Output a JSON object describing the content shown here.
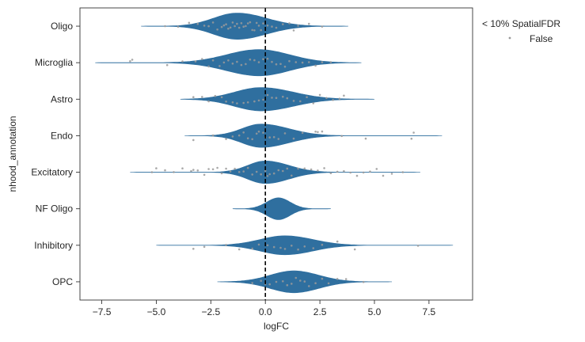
{
  "chart_data": {
    "type": "violin",
    "title": "",
    "xlabel": "logFC",
    "ylabel": "nhood_annotation",
    "xlim": [
      -8.5,
      9.5
    ],
    "xticks": [
      -7.5,
      -5.0,
      -2.5,
      0.0,
      2.5,
      5.0,
      7.5
    ],
    "xtick_labels": [
      "−7.5",
      "−5.0",
      "−2.5",
      "0.0",
      "2.5",
      "5.0",
      "7.5"
    ],
    "reference_line_x": 0,
    "grid": false,
    "violin_color": "#2f6f9f",
    "point_color": "#9a9a9a",
    "legend": {
      "placement": "outside-top-right",
      "title": "< 10% SpatialFDR",
      "entries": [
        {
          "label": "False",
          "color": "#9a9a9a"
        }
      ]
    },
    "categories": [
      "Oligo",
      "Microglia",
      "Astro",
      "Endo",
      "Excitatory",
      "NF Oligo",
      "Inhibitory",
      "OPC"
    ],
    "violins": [
      {
        "category": "Oligo",
        "range": [
          -5.7,
          3.8
        ],
        "mode": -1.3,
        "width": 0.72,
        "spread_left": 1.6,
        "spread_right": 2.0
      },
      {
        "category": "Microglia",
        "range": [
          -7.8,
          4.4
        ],
        "mode": -0.3,
        "width": 0.72,
        "spread_left": 2.2,
        "spread_right": 2.1
      },
      {
        "category": "Astro",
        "range": [
          -3.9,
          5.0
        ],
        "mode": -0.2,
        "width": 0.64,
        "spread_left": 1.8,
        "spread_right": 2.2
      },
      {
        "category": "Endo",
        "range": [
          -3.7,
          8.1
        ],
        "mode": -0.2,
        "width": 0.64,
        "spread_left": 1.3,
        "spread_right": 1.9
      },
      {
        "category": "Excitatory",
        "range": [
          -6.2,
          7.1
        ],
        "mode": 0.0,
        "width": 0.62,
        "spread_left": 1.2,
        "spread_right": 1.6
      },
      {
        "category": "NF Oligo",
        "range": [
          -1.5,
          3.0
        ],
        "mode": 0.6,
        "width": 0.6,
        "spread_left": 0.8,
        "spread_right": 0.8
      },
      {
        "category": "Inhibitory",
        "range": [
          -5.0,
          8.6
        ],
        "mode": 0.9,
        "width": 0.52,
        "spread_left": 1.7,
        "spread_right": 1.9
      },
      {
        "category": "OPC",
        "range": [
          -2.2,
          5.8
        ],
        "mode": 1.3,
        "width": 0.6,
        "spread_left": 1.6,
        "spread_right": 1.7
      }
    ],
    "points": [
      {
        "category": "Oligo",
        "x": [
          -4.6,
          -4.0,
          -3.5,
          -3.1,
          -2.8,
          -2.6,
          -2.4,
          -2.2,
          -2.0,
          -1.9,
          -1.8,
          -1.7,
          -1.6,
          -1.5,
          -1.4,
          -1.3,
          -1.2,
          -1.1,
          -1.0,
          -0.9,
          -0.8,
          -0.7,
          -0.6,
          -0.5,
          -0.4,
          -0.3,
          -0.2,
          -0.1,
          0.1,
          0.3,
          0.5,
          0.8,
          1.1,
          1.3,
          1.5,
          2.0,
          2.6
        ]
      },
      {
        "category": "Microglia",
        "x": [
          -6.2,
          -6.1,
          -4.5,
          -3.8,
          -3.2,
          -2.9,
          -2.6,
          -2.4,
          -2.1,
          -1.9,
          -1.7,
          -1.5,
          -1.3,
          -1.1,
          -0.9,
          -0.7,
          -0.5,
          -0.3,
          -0.1,
          0.1,
          0.3,
          0.5,
          0.7,
          0.9,
          1.1,
          1.4,
          1.7,
          2.0,
          2.3,
          2.6,
          3.0
        ]
      },
      {
        "category": "Astro",
        "x": [
          -3.3,
          -2.9,
          -2.6,
          -2.3,
          -2.0,
          -1.8,
          -1.5,
          -1.3,
          -1.0,
          -0.8,
          -0.5,
          -0.3,
          -0.1,
          0.1,
          0.3,
          0.5,
          0.8,
          1.0,
          1.3,
          1.6,
          1.9,
          2.2,
          2.5,
          2.8,
          3.1,
          3.4,
          3.6
        ]
      },
      {
        "category": "Endo",
        "x": [
          -3.3,
          -2.4,
          -1.8,
          -1.5,
          -1.2,
          -1.0,
          -0.8,
          -0.6,
          -0.4,
          -0.3,
          -0.1,
          0.0,
          0.2,
          0.4,
          0.6,
          0.9,
          1.3,
          1.7,
          2.3,
          2.4,
          2.6,
          3.5,
          4.6,
          6.7,
          6.8
        ]
      },
      {
        "category": "Excitatory",
        "x": [
          -5.2,
          -5.0,
          -4.6,
          -4.2,
          -3.8,
          -3.4,
          -3.3,
          -3.1,
          -2.8,
          -2.6,
          -2.4,
          -2.2,
          -2.0,
          -1.8,
          -1.6,
          -1.4,
          -1.2,
          -1.0,
          -0.8,
          -0.6,
          -0.4,
          -0.2,
          0.0,
          0.1,
          0.2,
          0.4,
          0.6,
          0.8,
          1.0,
          1.2,
          1.5,
          1.8,
          2.1,
          2.4,
          2.7,
          3.0,
          3.3,
          3.6,
          3.9,
          4.2,
          4.5,
          4.8,
          5.1,
          5.4,
          5.8,
          6.3
        ]
      },
      {
        "category": "Inhibitory",
        "x": [
          -3.3,
          -2.8,
          -1.8,
          -1.2,
          -0.6,
          -0.3,
          0.1,
          0.4,
          0.7,
          0.9,
          1.2,
          1.5,
          1.8,
          2.2,
          2.6,
          3.3,
          4.1,
          7.0
        ]
      },
      {
        "category": "OPC",
        "x": [
          -0.6,
          -0.2,
          0.0,
          0.2,
          0.5,
          0.8,
          1.0,
          1.2,
          1.4,
          1.6,
          1.8,
          2.0,
          2.3,
          2.6,
          2.9,
          3.3,
          3.7,
          4.5
        ]
      }
    ]
  }
}
